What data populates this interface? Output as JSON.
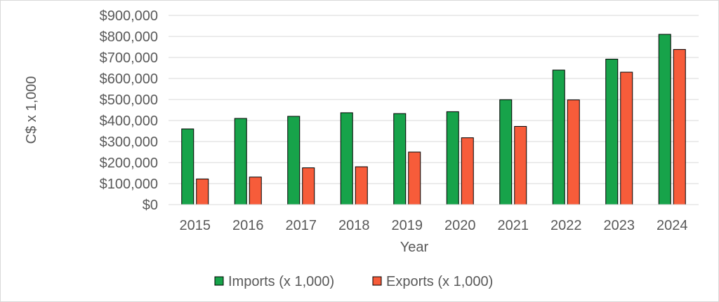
{
  "chart_data": {
    "type": "bar",
    "categories": [
      "2015",
      "2016",
      "2017",
      "2018",
      "2019",
      "2020",
      "2021",
      "2022",
      "2023",
      "2024"
    ],
    "series": [
      {
        "name": "Imports (x 1,000)",
        "color": "#17a34a",
        "values": [
          360000,
          410000,
          420000,
          437000,
          433000,
          442000,
          499000,
          640000,
          692000,
          810000
        ]
      },
      {
        "name": "Exports (x 1,000)",
        "color": "#f75c3a",
        "values": [
          122000,
          131000,
          175000,
          180000,
          250000,
          318000,
          372000,
          498000,
          630000,
          738000
        ]
      }
    ],
    "ylabel": "C$ x 1,000",
    "xlabel": "Year",
    "ylim": [
      0,
      900000
    ],
    "yticks": [
      "$0",
      "$100,000",
      "$200,000",
      "$300,000",
      "$400,000",
      "$500,000",
      "$600,000",
      "$700,000",
      "$800,000",
      "$900,000"
    ],
    "grid": true,
    "legend_position": "bottom"
  }
}
